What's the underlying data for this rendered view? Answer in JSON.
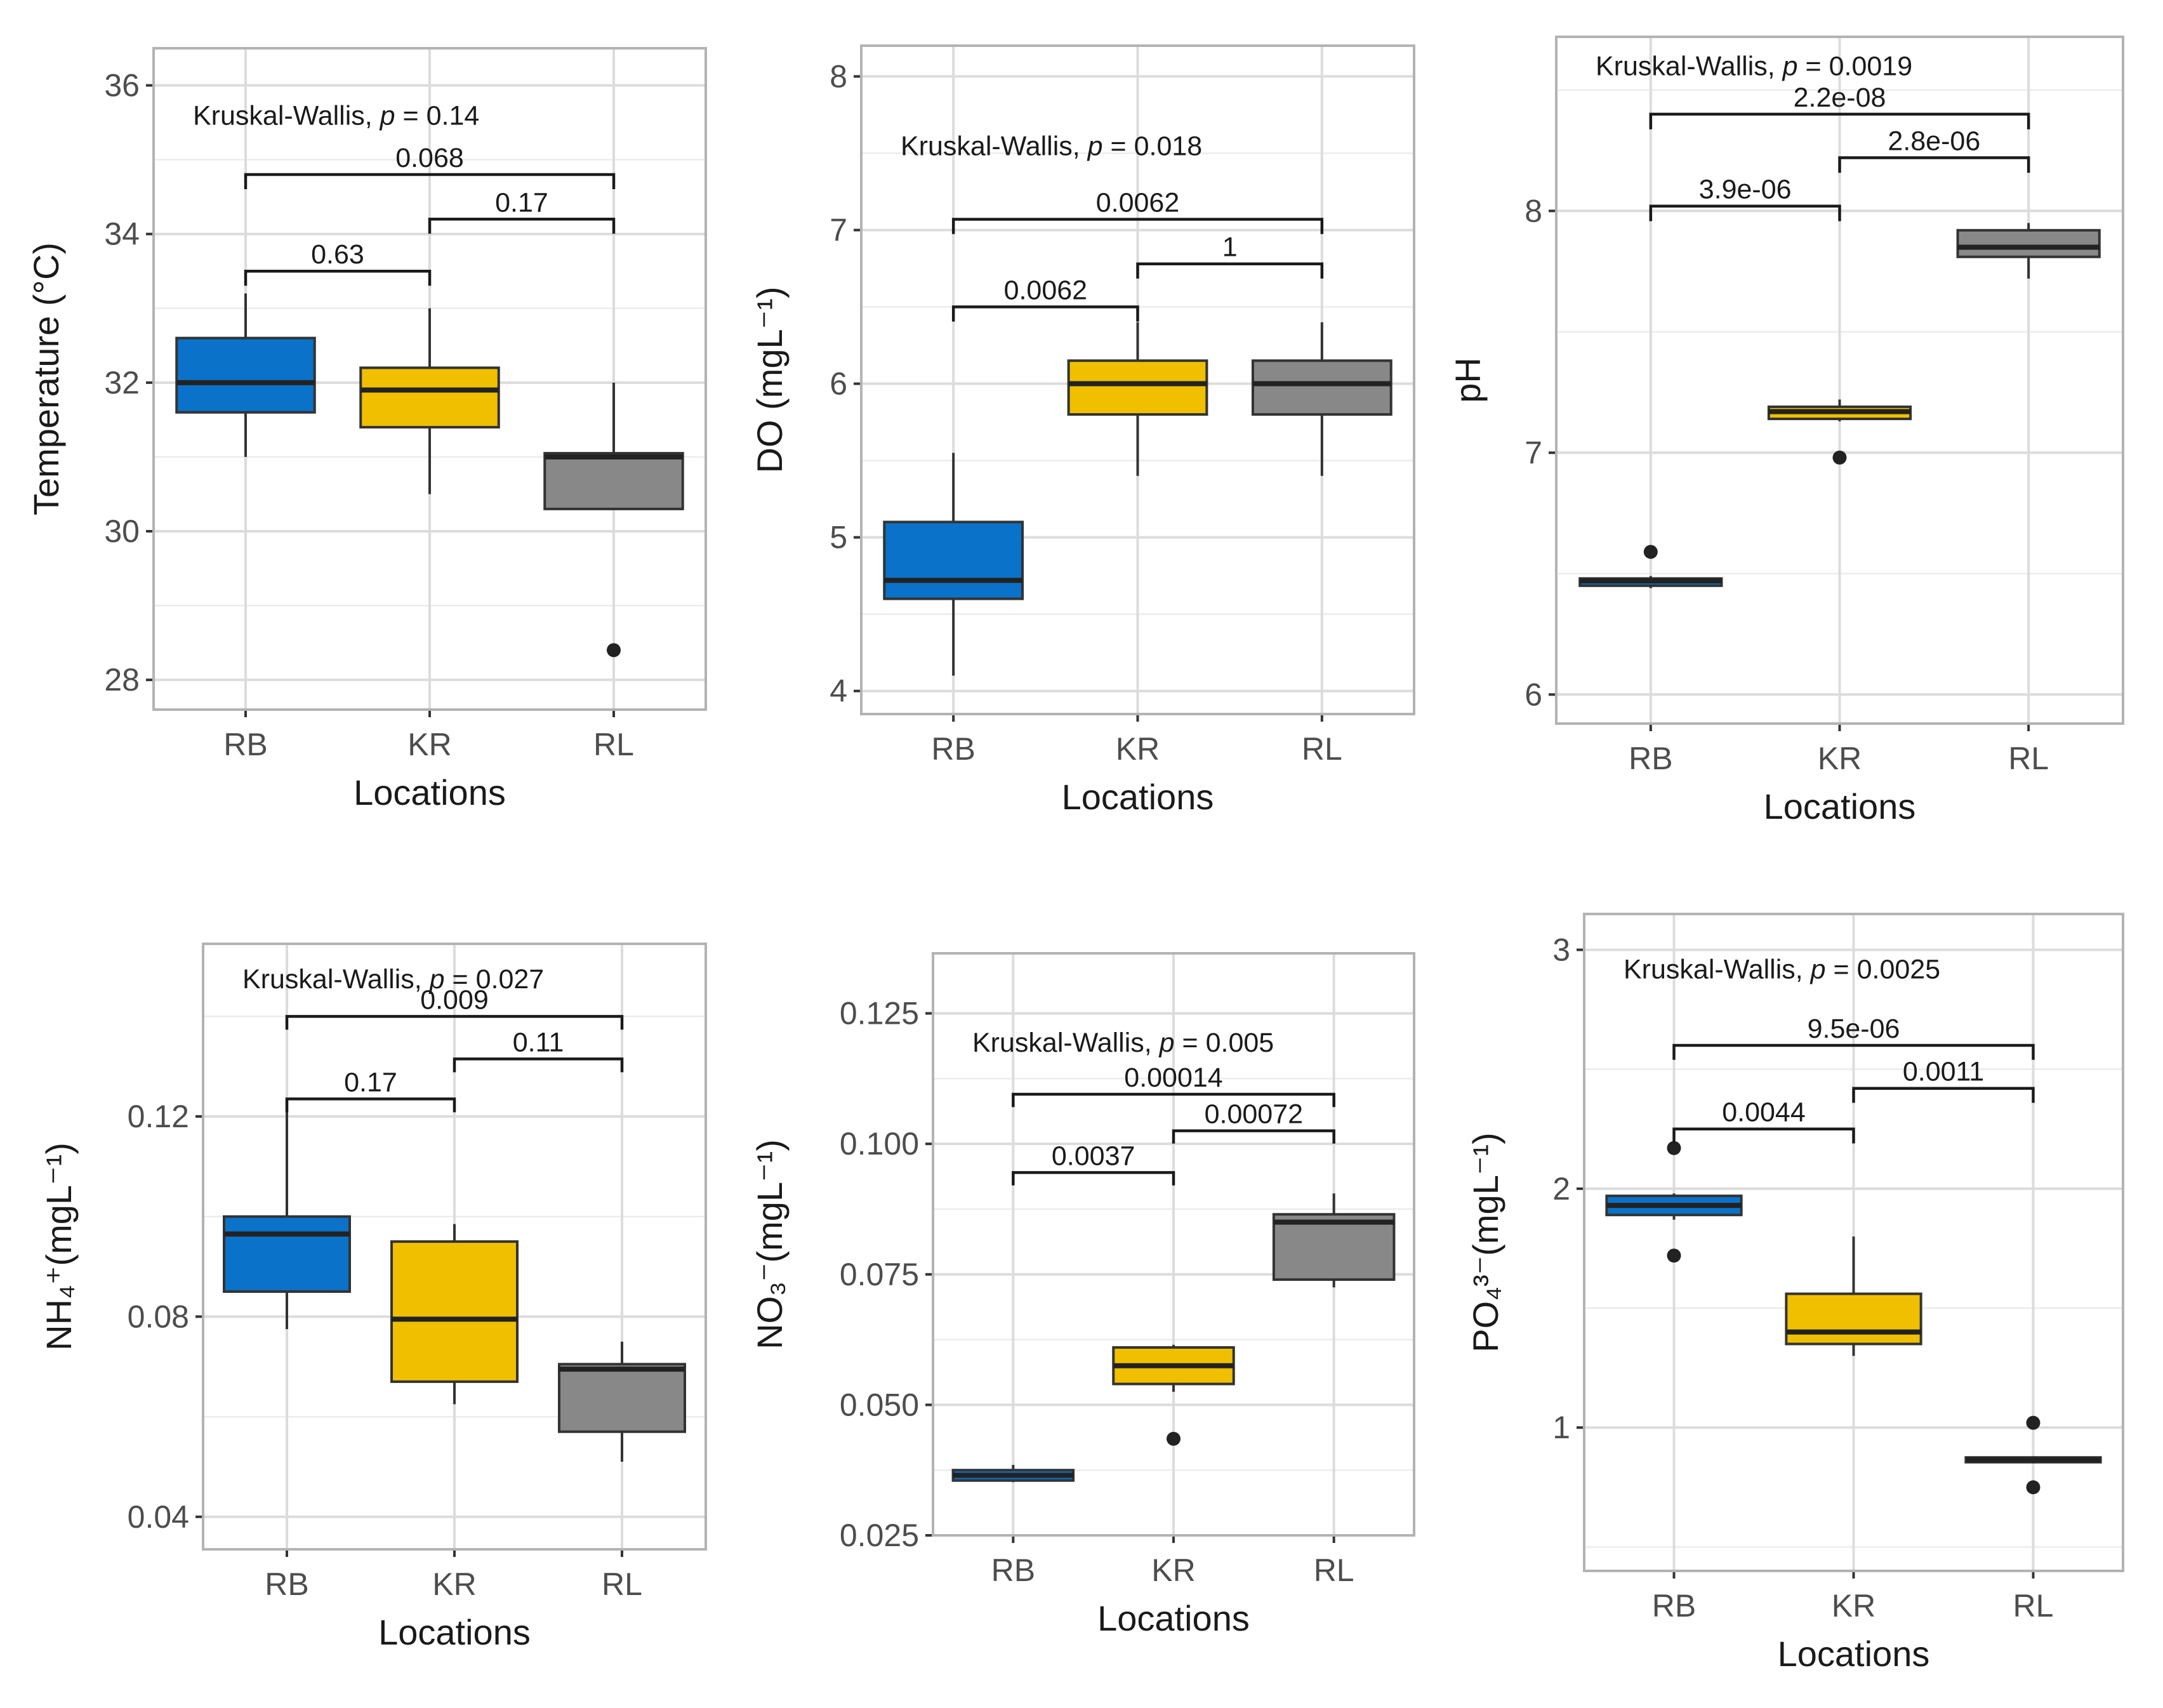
{
  "colors": {
    "RB": "#0A72C8",
    "KR": "#F0C000",
    "RL": "#888888"
  },
  "chart_data": [
    {
      "type": "box",
      "xlabel": "Locations",
      "ylabel": "Temperature (°C)",
      "categories": [
        "RB",
        "KR",
        "RL"
      ],
      "ylim": [
        27.6,
        36.5
      ],
      "yticks": [
        28,
        30,
        32,
        34,
        36
      ],
      "ytick_labels": [
        "28",
        "30",
        "32",
        "34",
        "36"
      ],
      "boxes": [
        {
          "q1": 31.6,
          "median": 32.0,
          "q3": 32.6,
          "low": 31.0,
          "high": 33.2,
          "outliers": []
        },
        {
          "q1": 31.4,
          "median": 31.9,
          "q3": 32.2,
          "low": 30.5,
          "high": 33.0,
          "outliers": []
        },
        {
          "q1": 30.3,
          "median": 31.0,
          "q3": 31.05,
          "low": 30.3,
          "high": 32.0,
          "outliers": [
            28.4
          ]
        }
      ],
      "test": {
        "prefix": "Kruskal-Wallis,",
        "p_symbol": "p",
        "p_text": "= 0.14",
        "y": 35.6
      },
      "comparisons": [
        {
          "from": 0,
          "to": 1,
          "label": "0.63",
          "y": 33.5
        },
        {
          "from": 1,
          "to": 2,
          "label": "0.17",
          "y": 34.2
        },
        {
          "from": 0,
          "to": 2,
          "label": "0.068",
          "y": 34.8
        }
      ]
    },
    {
      "type": "box",
      "xlabel": "Locations",
      "ylabel": "DO (mgL⁻¹)",
      "categories": [
        "RB",
        "KR",
        "RL"
      ],
      "ylim": [
        3.85,
        8.2
      ],
      "yticks": [
        4,
        5,
        6,
        7,
        8
      ],
      "ytick_labels": [
        "4",
        "5",
        "6",
        "7",
        "8"
      ],
      "boxes": [
        {
          "q1": 4.6,
          "median": 4.72,
          "q3": 5.1,
          "low": 4.1,
          "high": 5.55,
          "outliers": []
        },
        {
          "q1": 5.8,
          "median": 6.0,
          "q3": 6.15,
          "low": 5.4,
          "high": 6.4,
          "outliers": []
        },
        {
          "q1": 5.8,
          "median": 6.0,
          "q3": 6.15,
          "low": 5.4,
          "high": 6.4,
          "outliers": []
        }
      ],
      "test": {
        "prefix": "Kruskal-Wallis,",
        "p_symbol": "p",
        "p_text": "= 0.018",
        "y": 7.55
      },
      "comparisons": [
        {
          "from": 0,
          "to": 1,
          "label": "0.0062",
          "y": 6.5
        },
        {
          "from": 1,
          "to": 2,
          "label": "1",
          "y": 6.78
        },
        {
          "from": 0,
          "to": 2,
          "label": "0.0062",
          "y": 7.07
        }
      ]
    },
    {
      "type": "box",
      "xlabel": "Locations",
      "ylabel": "pH",
      "categories": [
        "RB",
        "KR",
        "RL"
      ],
      "ylim": [
        5.88,
        8.72
      ],
      "yticks": [
        6,
        7,
        8
      ],
      "ytick_labels": [
        "6",
        "7",
        "8"
      ],
      "boxes": [
        {
          "q1": 6.45,
          "median": 6.47,
          "q3": 6.48,
          "low": 6.44,
          "high": 6.49,
          "outliers": [
            6.59
          ]
        },
        {
          "q1": 7.14,
          "median": 7.17,
          "q3": 7.19,
          "low": 7.13,
          "high": 7.22,
          "outliers": [
            6.98
          ]
        },
        {
          "q1": 7.81,
          "median": 7.85,
          "q3": 7.92,
          "low": 7.72,
          "high": 7.95,
          "outliers": []
        }
      ],
      "test": {
        "prefix": "Kruskal-Wallis,",
        "p_symbol": "p",
        "p_text": "= 0.0019",
        "y": 8.6
      },
      "comparisons": [
        {
          "from": 0,
          "to": 1,
          "label": "3.9e-06",
          "y": 8.02
        },
        {
          "from": 1,
          "to": 2,
          "label": "2.8e-06",
          "y": 8.22
        },
        {
          "from": 0,
          "to": 2,
          "label": "2.2e-08",
          "y": 8.4
        }
      ]
    },
    {
      "type": "box",
      "xlabel": "Locations",
      "ylabel": "NH₄⁺(mgL⁻¹)",
      "categories": [
        "RB",
        "KR",
        "RL"
      ],
      "ylim": [
        0.0335,
        0.1545
      ],
      "yticks": [
        0.04,
        0.08,
        0.12
      ],
      "ytick_labels": [
        "0.04",
        "0.08",
        "0.12"
      ],
      "boxes": [
        {
          "q1": 0.085,
          "median": 0.0965,
          "q3": 0.1,
          "low": 0.0775,
          "high": 0.121,
          "outliers": []
        },
        {
          "q1": 0.067,
          "median": 0.0795,
          "q3": 0.095,
          "low": 0.0625,
          "high": 0.0985,
          "outliers": []
        },
        {
          "q1": 0.057,
          "median": 0.0695,
          "q3": 0.0705,
          "low": 0.051,
          "high": 0.075,
          "outliers": []
        }
      ],
      "test": {
        "prefix": "Kruskal-Wallis,",
        "p_symbol": "p",
        "p_text": "= 0.027",
        "y": 0.1475
      },
      "comparisons": [
        {
          "from": 0,
          "to": 1,
          "label": "0.17",
          "y": 0.1235
        },
        {
          "from": 1,
          "to": 2,
          "label": "0.11",
          "y": 0.1315
        },
        {
          "from": 0,
          "to": 2,
          "label": "0.009",
          "y": 0.14
        }
      ]
    },
    {
      "type": "box",
      "xlabel": "Locations",
      "ylabel": "NO₃⁻(mgL⁻¹)",
      "categories": [
        "RB",
        "KR",
        "RL"
      ],
      "ylim": [
        0.025,
        0.1365
      ],
      "yticks": [
        0.025,
        0.05,
        0.075,
        0.1,
        0.125
      ],
      "ytick_labels": [
        "0.025",
        "0.050",
        "0.075",
        "0.100",
        "0.125"
      ],
      "boxes": [
        {
          "q1": 0.0355,
          "median": 0.0365,
          "q3": 0.0375,
          "low": 0.0352,
          "high": 0.0385,
          "outliers": []
        },
        {
          "q1": 0.054,
          "median": 0.0575,
          "q3": 0.061,
          "low": 0.0525,
          "high": 0.0615,
          "outliers": [
            0.0435
          ]
        },
        {
          "q1": 0.074,
          "median": 0.085,
          "q3": 0.0865,
          "low": 0.0725,
          "high": 0.0905,
          "outliers": []
        }
      ],
      "test": {
        "prefix": "Kruskal-Wallis,",
        "p_symbol": "p",
        "p_text": "= 0.005",
        "y": 0.1195
      },
      "comparisons": [
        {
          "from": 0,
          "to": 1,
          "label": "0.0037",
          "y": 0.0945
        },
        {
          "from": 1,
          "to": 2,
          "label": "0.00072",
          "y": 0.1025
        },
        {
          "from": 0,
          "to": 2,
          "label": "0.00014",
          "y": 0.1095
        }
      ]
    },
    {
      "type": "box",
      "xlabel": "Locations",
      "ylabel": "PO₄³⁻(mgL⁻¹)",
      "categories": [
        "RB",
        "KR",
        "RL"
      ],
      "ylim": [
        0.4,
        3.15
      ],
      "yticks": [
        1,
        2,
        3
      ],
      "ytick_labels": [
        "1",
        "2",
        "3"
      ],
      "boxes": [
        {
          "q1": 1.89,
          "median": 1.93,
          "q3": 1.97,
          "low": 1.87,
          "high": 1.98,
          "outliers": [
            2.17,
            1.72
          ]
        },
        {
          "q1": 1.35,
          "median": 1.4,
          "q3": 1.56,
          "low": 1.3,
          "high": 1.8,
          "outliers": []
        },
        {
          "q1": 0.855,
          "median": 0.865,
          "q3": 0.875,
          "low": 0.85,
          "high": 0.88,
          "outliers": [
            1.02,
            0.75
          ]
        }
      ],
      "test": {
        "prefix": "Kruskal-Wallis,",
        "p_symbol": "p",
        "p_text": "= 0.0025",
        "y": 2.92
      },
      "comparisons": [
        {
          "from": 0,
          "to": 1,
          "label": "0.0044",
          "y": 2.25
        },
        {
          "from": 1,
          "to": 2,
          "label": "0.0011",
          "y": 2.42
        },
        {
          "from": 0,
          "to": 2,
          "label": "9.5e-06",
          "y": 2.6
        }
      ]
    }
  ]
}
